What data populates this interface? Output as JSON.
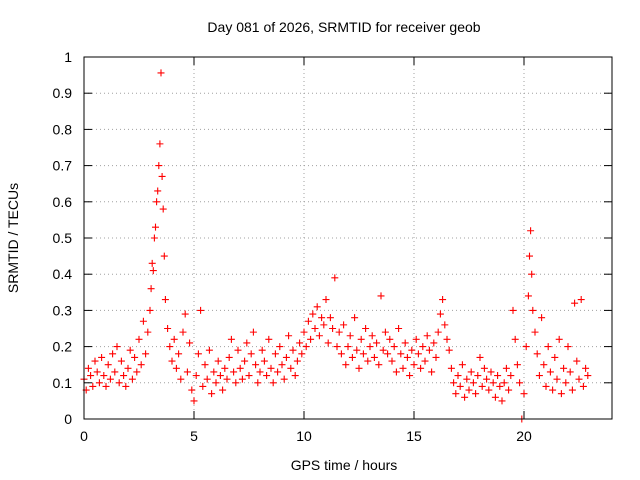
{
  "chart_data": {
    "type": "scatter",
    "title": "Day 081 of 2026, SRMTID for receiver geob",
    "xlabel": "GPS time / hours",
    "ylabel": "SRMTID / TECUs",
    "xlim": [
      0,
      24
    ],
    "ylim": [
      0,
      1
    ],
    "xticks": [
      0,
      5,
      10,
      15,
      20
    ],
    "xtick_labels": [
      "0",
      "5",
      "10",
      "15",
      "20"
    ],
    "yticks": [
      0,
      0.1,
      0.2,
      0.3,
      0.4,
      0.5,
      0.6,
      0.7,
      0.8,
      0.9,
      1
    ],
    "ytick_labels": [
      "0",
      "0.1",
      "0.2",
      "0.3",
      "0.4",
      "0.5",
      "0.6",
      "0.7",
      "0.8",
      "0.9",
      "1"
    ],
    "grid": true,
    "marker": "+",
    "series": [
      {
        "name": "SRMTID",
        "color": "#ff0000",
        "points": [
          [
            0.0,
            0.11
          ],
          [
            0.1,
            0.08
          ],
          [
            0.2,
            0.14
          ],
          [
            0.3,
            0.12
          ],
          [
            0.4,
            0.09
          ],
          [
            0.5,
            0.16
          ],
          [
            0.6,
            0.13
          ],
          [
            0.7,
            0.1
          ],
          [
            0.8,
            0.17
          ],
          [
            0.9,
            0.12
          ],
          [
            1.0,
            0.09
          ],
          [
            1.1,
            0.15
          ],
          [
            1.2,
            0.11
          ],
          [
            1.3,
            0.18
          ],
          [
            1.4,
            0.13
          ],
          [
            1.5,
            0.2
          ],
          [
            1.6,
            0.1
          ],
          [
            1.7,
            0.16
          ],
          [
            1.8,
            0.12
          ],
          [
            1.9,
            0.09
          ],
          [
            2.0,
            0.14
          ],
          [
            2.1,
            0.19
          ],
          [
            2.2,
            0.11
          ],
          [
            2.3,
            0.17
          ],
          [
            2.4,
            0.13
          ],
          [
            2.5,
            0.22
          ],
          [
            2.6,
            0.15
          ],
          [
            2.7,
            0.27
          ],
          [
            2.8,
            0.18
          ],
          [
            2.9,
            0.24
          ],
          [
            3.0,
            0.3
          ],
          [
            3.05,
            0.36
          ],
          [
            3.1,
            0.43
          ],
          [
            3.15,
            0.41
          ],
          [
            3.2,
            0.5
          ],
          [
            3.25,
            0.53
          ],
          [
            3.3,
            0.6
          ],
          [
            3.35,
            0.63
          ],
          [
            3.4,
            0.7
          ],
          [
            3.45,
            0.76
          ],
          [
            3.5,
            0.956
          ],
          [
            3.55,
            0.67
          ],
          [
            3.6,
            0.58
          ],
          [
            3.65,
            0.45
          ],
          [
            3.7,
            0.33
          ],
          [
            3.8,
            0.25
          ],
          [
            3.9,
            0.2
          ],
          [
            4.0,
            0.16
          ],
          [
            4.1,
            0.22
          ],
          [
            4.2,
            0.14
          ],
          [
            4.3,
            0.18
          ],
          [
            4.4,
            0.11
          ],
          [
            4.5,
            0.24
          ],
          [
            4.6,
            0.29
          ],
          [
            4.7,
            0.13
          ],
          [
            4.8,
            0.21
          ],
          [
            4.9,
            0.08
          ],
          [
            5.0,
            0.05
          ],
          [
            5.1,
            0.12
          ],
          [
            5.2,
            0.18
          ],
          [
            5.3,
            0.3
          ],
          [
            5.4,
            0.09
          ],
          [
            5.5,
            0.15
          ],
          [
            5.6,
            0.11
          ],
          [
            5.7,
            0.19
          ],
          [
            5.8,
            0.07
          ],
          [
            5.9,
            0.13
          ],
          [
            6.0,
            0.1
          ],
          [
            6.1,
            0.16
          ],
          [
            6.2,
            0.12
          ],
          [
            6.3,
            0.08
          ],
          [
            6.4,
            0.14
          ],
          [
            6.5,
            0.11
          ],
          [
            6.6,
            0.17
          ],
          [
            6.7,
            0.22
          ],
          [
            6.8,
            0.13
          ],
          [
            6.9,
            0.1
          ],
          [
            7.0,
            0.19
          ],
          [
            7.1,
            0.14
          ],
          [
            7.2,
            0.11
          ],
          [
            7.3,
            0.16
          ],
          [
            7.4,
            0.21
          ],
          [
            7.5,
            0.12
          ],
          [
            7.6,
            0.18
          ],
          [
            7.7,
            0.24
          ],
          [
            7.8,
            0.15
          ],
          [
            7.9,
            0.1
          ],
          [
            8.0,
            0.13
          ],
          [
            8.1,
            0.19
          ],
          [
            8.2,
            0.16
          ],
          [
            8.3,
            0.12
          ],
          [
            8.4,
            0.22
          ],
          [
            8.5,
            0.14
          ],
          [
            8.6,
            0.1
          ],
          [
            8.7,
            0.18
          ],
          [
            8.8,
            0.13
          ],
          [
            8.9,
            0.2
          ],
          [
            9.0,
            0.15
          ],
          [
            9.1,
            0.11
          ],
          [
            9.2,
            0.17
          ],
          [
            9.3,
            0.23
          ],
          [
            9.4,
            0.14
          ],
          [
            9.5,
            0.19
          ],
          [
            9.6,
            0.12
          ],
          [
            9.7,
            0.16
          ],
          [
            9.8,
            0.21
          ],
          [
            9.9,
            0.18
          ],
          [
            10.0,
            0.24
          ],
          [
            10.1,
            0.2
          ],
          [
            10.2,
            0.27
          ],
          [
            10.3,
            0.22
          ],
          [
            10.4,
            0.29
          ],
          [
            10.5,
            0.25
          ],
          [
            10.6,
            0.31
          ],
          [
            10.7,
            0.23
          ],
          [
            10.8,
            0.28
          ],
          [
            10.9,
            0.26
          ],
          [
            11.0,
            0.33
          ],
          [
            11.1,
            0.21
          ],
          [
            11.2,
            0.28
          ],
          [
            11.3,
            0.25
          ],
          [
            11.4,
            0.39
          ],
          [
            11.5,
            0.2
          ],
          [
            11.6,
            0.24
          ],
          [
            11.7,
            0.18
          ],
          [
            11.8,
            0.26
          ],
          [
            11.9,
            0.15
          ],
          [
            12.0,
            0.2
          ],
          [
            12.1,
            0.23
          ],
          [
            12.2,
            0.17
          ],
          [
            12.3,
            0.28
          ],
          [
            12.4,
            0.19
          ],
          [
            12.5,
            0.14
          ],
          [
            12.6,
            0.22
          ],
          [
            12.7,
            0.18
          ],
          [
            12.8,
            0.25
          ],
          [
            12.9,
            0.16
          ],
          [
            13.0,
            0.2
          ],
          [
            13.1,
            0.23
          ],
          [
            13.2,
            0.17
          ],
          [
            13.3,
            0.21
          ],
          [
            13.4,
            0.15
          ],
          [
            13.5,
            0.34
          ],
          [
            13.6,
            0.19
          ],
          [
            13.7,
            0.24
          ],
          [
            13.8,
            0.18
          ],
          [
            13.9,
            0.22
          ],
          [
            14.0,
            0.16
          ],
          [
            14.1,
            0.2
          ],
          [
            14.2,
            0.13
          ],
          [
            14.3,
            0.25
          ],
          [
            14.4,
            0.18
          ],
          [
            14.5,
            0.14
          ],
          [
            14.6,
            0.21
          ],
          [
            14.7,
            0.17
          ],
          [
            14.8,
            0.12
          ],
          [
            14.9,
            0.19
          ],
          [
            15.0,
            0.15
          ],
          [
            15.1,
            0.22
          ],
          [
            15.2,
            0.18
          ],
          [
            15.3,
            0.14
          ],
          [
            15.4,
            0.2
          ],
          [
            15.5,
            0.16
          ],
          [
            15.6,
            0.23
          ],
          [
            15.7,
            0.19
          ],
          [
            15.8,
            0.13
          ],
          [
            15.9,
            0.21
          ],
          [
            16.0,
            0.17
          ],
          [
            16.1,
            0.24
          ],
          [
            16.2,
            0.29
          ],
          [
            16.3,
            0.33
          ],
          [
            16.4,
            0.26
          ],
          [
            16.5,
            0.22
          ],
          [
            16.6,
            0.19
          ],
          [
            16.7,
            0.14
          ],
          [
            16.8,
            0.1
          ],
          [
            16.9,
            0.07
          ],
          [
            17.0,
            0.12
          ],
          [
            17.1,
            0.09
          ],
          [
            17.2,
            0.15
          ],
          [
            17.3,
            0.06
          ],
          [
            17.4,
            0.11
          ],
          [
            17.5,
            0.08
          ],
          [
            17.6,
            0.13
          ],
          [
            17.7,
            0.1
          ],
          [
            17.8,
            0.07
          ],
          [
            17.9,
            0.12
          ],
          [
            18.0,
            0.17
          ],
          [
            18.1,
            0.09
          ],
          [
            18.2,
            0.14
          ],
          [
            18.3,
            0.11
          ],
          [
            18.4,
            0.08
          ],
          [
            18.5,
            0.13
          ],
          [
            18.6,
            0.1
          ],
          [
            18.7,
            0.06
          ],
          [
            18.8,
            0.12
          ],
          [
            18.9,
            0.09
          ],
          [
            19.0,
            0.05
          ],
          [
            19.1,
            0.1
          ],
          [
            19.2,
            0.14
          ],
          [
            19.3,
            0.08
          ],
          [
            19.4,
            0.12
          ],
          [
            19.5,
            0.3
          ],
          [
            19.6,
            0.22
          ],
          [
            19.7,
            0.15
          ],
          [
            19.8,
            0.1
          ],
          [
            19.9,
            0.0
          ],
          [
            20.0,
            0.07
          ],
          [
            20.1,
            0.2
          ],
          [
            20.2,
            0.34
          ],
          [
            20.25,
            0.45
          ],
          [
            20.3,
            0.52
          ],
          [
            20.35,
            0.4
          ],
          [
            20.4,
            0.3
          ],
          [
            20.5,
            0.24
          ],
          [
            20.6,
            0.18
          ],
          [
            20.7,
            0.12
          ],
          [
            20.8,
            0.28
          ],
          [
            20.9,
            0.15
          ],
          [
            21.0,
            0.09
          ],
          [
            21.1,
            0.2
          ],
          [
            21.2,
            0.13
          ],
          [
            21.3,
            0.08
          ],
          [
            21.4,
            0.17
          ],
          [
            21.5,
            0.11
          ],
          [
            21.6,
            0.22
          ],
          [
            21.7,
            0.07
          ],
          [
            21.8,
            0.14
          ],
          [
            21.9,
            0.1
          ],
          [
            22.0,
            0.2
          ],
          [
            22.1,
            0.13
          ],
          [
            22.2,
            0.08
          ],
          [
            22.3,
            0.32
          ],
          [
            22.4,
            0.16
          ],
          [
            22.5,
            0.11
          ],
          [
            22.6,
            0.33
          ],
          [
            22.7,
            0.09
          ],
          [
            22.8,
            0.14
          ],
          [
            22.9,
            0.12
          ]
        ]
      }
    ]
  }
}
